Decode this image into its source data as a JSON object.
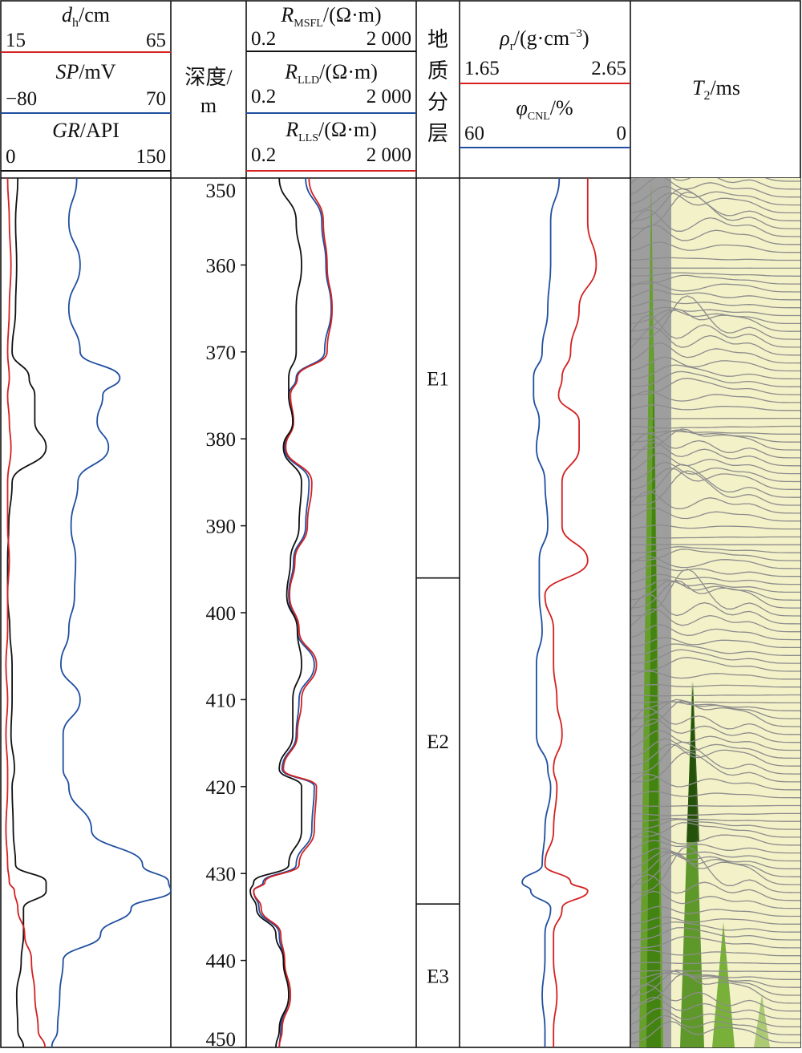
{
  "tracks": {
    "caliper": {
      "symbol": "d",
      "sub": "h",
      "unit": "/cm",
      "min": "15",
      "max": "65",
      "color": "#d42020"
    },
    "sp": {
      "symbol": "SP",
      "unit": "/mV",
      "min": "−80",
      "max": "70",
      "color": "#1f4fa0"
    },
    "gr": {
      "symbol": "GR",
      "unit": "/API",
      "min": "0",
      "max": "150",
      "color": "#111111"
    },
    "depth": {
      "label1": "深度/",
      "label2": "m"
    },
    "resistivity": {
      "msfl": {
        "symbol": "R",
        "sub": "MSFL",
        "unit": "/(Ω·m)",
        "min": "0.2",
        "max": "2 000",
        "color": "#111111"
      },
      "lld": {
        "symbol": "R",
        "sub": "LLD",
        "unit": "/(Ω·m)",
        "min": "0.2",
        "max": "2 000",
        "color": "#1f4fa0"
      },
      "lls": {
        "symbol": "R",
        "sub": "LLS",
        "unit": "/(Ω·m)",
        "min": "0.2",
        "max": "2 000",
        "color": "#d42020"
      }
    },
    "strata": {
      "chars": [
        "地",
        "质",
        "分",
        "层"
      ]
    },
    "density": {
      "symbol": "ρ",
      "sub": "r",
      "unit": "/(g·cm",
      "sup": "−3",
      "unit_end": ")",
      "min": "1.65",
      "max": "2.65",
      "color": "#d42020"
    },
    "neutron": {
      "symbol": "φ",
      "sub": "CNL",
      "unit": "/%",
      "min": "60",
      "max": "0",
      "color": "#1f4fa0"
    },
    "t2": {
      "symbol": "T",
      "sub": "2",
      "unit": "/ms"
    }
  },
  "chart_data": {
    "type": "line",
    "depth_unit": "m",
    "depth_range": [
      350,
      450
    ],
    "depth_ticks": [
      "350",
      "360",
      "370",
      "380",
      "390",
      "400",
      "410",
      "420",
      "430",
      "440",
      "450"
    ],
    "layers": [
      {
        "name": "E1",
        "top": 350,
        "bottom": 396
      },
      {
        "name": "E2",
        "top": 396,
        "bottom": 433.5
      },
      {
        "name": "E3",
        "top": 433.5,
        "bottom": 450
      }
    ],
    "curves": {
      "depth": [
        350,
        355,
        360,
        365,
        370,
        373,
        375,
        378,
        381,
        385,
        390,
        394,
        398,
        402,
        406,
        410,
        414,
        418,
        420,
        425,
        429,
        431,
        432,
        434,
        437,
        440,
        444,
        448,
        450
      ],
      "dh": [
        17,
        17.5,
        18,
        17.5,
        17,
        17.5,
        17,
        17.5,
        18,
        17,
        17,
        17.5,
        17,
        17,
        16.5,
        17,
        16.5,
        17,
        17,
        16.5,
        17,
        17.5,
        19,
        20,
        22,
        24,
        25,
        26,
        28
      ],
      "sp": [
        -13,
        -20,
        -10,
        -20,
        -10,
        25,
        10,
        5,
        15,
        -12,
        -18,
        -14,
        -15,
        -20,
        -27,
        -10,
        -25,
        -25,
        -20,
        0,
        45,
        68,
        70,
        35,
        8,
        -25,
        -28,
        -30,
        -35
      ],
      "gr": [
        15,
        13,
        14,
        13,
        10,
        25,
        30,
        30,
        40,
        10,
        7,
        6,
        6,
        8,
        10,
        10,
        9,
        12,
        10,
        11,
        13,
        40,
        40,
        20,
        20,
        18,
        14,
        15,
        20
      ],
      "msfl": [
        1.2,
        3,
        4,
        3,
        3,
        2,
        2,
        2.5,
        1.5,
        4,
        3.5,
        2.2,
        1.8,
        3.2,
        4,
        2.5,
        2.5,
        1.2,
        4,
        4,
        2,
        0.3,
        0.25,
        0.35,
        1,
        1.5,
        2,
        1.2,
        1
      ],
      "lld": [
        5,
        12,
        15,
        20,
        14,
        3,
        2,
        2.5,
        1.6,
        6,
        5,
        2.6,
        2,
        3.2,
        8,
        3.5,
        3,
        1.4,
        8,
        7,
        3,
        0.5,
        0.3,
        0.4,
        1.2,
        1.5,
        2,
        1.3,
        1.2
      ],
      "lls": [
        6,
        13,
        16,
        21,
        16,
        3.2,
        2.2,
        2.6,
        1.7,
        7,
        5.5,
        2.8,
        2.1,
        3.5,
        9,
        4,
        3.2,
        1.5,
        9,
        8,
        3.5,
        0.55,
        0.3,
        0.45,
        1.3,
        1.6,
        2.2,
        1.4,
        1.2
      ],
      "rho": [
        2.4,
        2.4,
        2.45,
        2.35,
        2.3,
        2.25,
        2.23,
        2.35,
        2.35,
        2.25,
        2.25,
        2.4,
        2.15,
        2.2,
        2.2,
        2.22,
        2.25,
        2.2,
        2.22,
        2.2,
        2.15,
        2.3,
        2.4,
        2.25,
        2.2,
        2.2,
        2.22,
        2.2,
        2.2
      ],
      "cnl": [
        25,
        28,
        28,
        29,
        31,
        34,
        34,
        32,
        33,
        30,
        29,
        32,
        32,
        31,
        33,
        33,
        33,
        29,
        28,
        30,
        31,
        38,
        35,
        28,
        30,
        30,
        31,
        30,
        30
      ]
    }
  }
}
